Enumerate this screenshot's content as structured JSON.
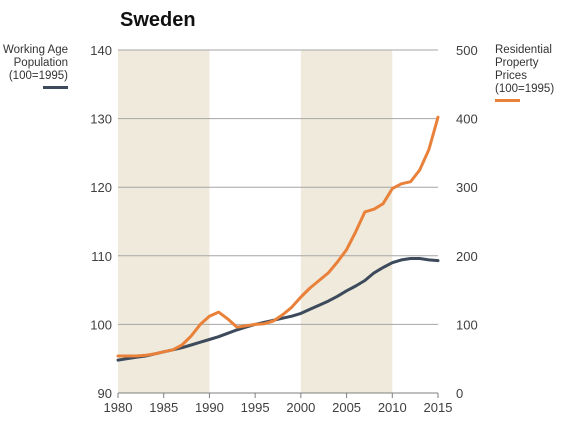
{
  "chart_data": {
    "type": "line",
    "title": "Sweden",
    "x_range": [
      1980,
      2015
    ],
    "x_ticks": [
      1980,
      1985,
      1990,
      1995,
      2000,
      2005,
      2010,
      2015
    ],
    "y_left": {
      "range": [
        90,
        140
      ],
      "ticks": [
        90,
        100,
        110,
        120,
        130,
        140
      ]
    },
    "y_right": {
      "range": [
        0,
        500
      ],
      "ticks": [
        0,
        100,
        200,
        300,
        400,
        500
      ]
    },
    "grid": "horizontal",
    "shaded_periods": [
      [
        1980,
        1990
      ],
      [
        2000,
        2010
      ]
    ],
    "shade_color": "#EFEADB",
    "series": [
      {
        "name": "Working Age Population (100=1995)",
        "axis": "left",
        "color": "#3C4A5C",
        "x": [
          1980,
          1981,
          1982,
          1983,
          1984,
          1985,
          1986,
          1987,
          1988,
          1989,
          1990,
          1991,
          1992,
          1993,
          1994,
          1995,
          1996,
          1997,
          1998,
          1999,
          2000,
          2001,
          2002,
          2003,
          2004,
          2005,
          2006,
          2007,
          2008,
          2009,
          2010,
          2011,
          2012,
          2013,
          2014,
          2015
        ],
        "values": [
          94.8,
          95.0,
          95.2,
          95.4,
          95.7,
          96.0,
          96.3,
          96.6,
          97.0,
          97.4,
          97.8,
          98.2,
          98.7,
          99.2,
          99.6,
          100.0,
          100.3,
          100.6,
          100.9,
          101.2,
          101.6,
          102.2,
          102.8,
          103.4,
          104.1,
          104.9,
          105.6,
          106.4,
          107.5,
          108.3,
          109.0,
          109.4,
          109.6,
          109.6,
          109.4,
          109.3
        ]
      },
      {
        "name": "Residential Property Prices (100=1995)",
        "axis": "right",
        "color": "#E9813A",
        "x": [
          1980,
          1981,
          1982,
          1983,
          1984,
          1985,
          1986,
          1987,
          1988,
          1989,
          1990,
          1991,
          1992,
          1993,
          1994,
          1995,
          1996,
          1997,
          1998,
          1999,
          2000,
          2001,
          2002,
          2003,
          2004,
          2005,
          2006,
          2007,
          2008,
          2009,
          2010,
          2011,
          2012,
          2013,
          2014,
          2015
        ],
        "values": [
          54,
          54,
          54,
          55,
          57,
          60,
          63,
          70,
          83,
          100,
          112,
          118,
          108,
          96,
          98,
          100,
          101,
          105,
          114,
          125,
          140,
          153,
          164,
          175,
          191,
          209,
          235,
          264,
          268,
          276,
          298,
          305,
          308,
          325,
          355,
          402
        ]
      }
    ]
  }
}
